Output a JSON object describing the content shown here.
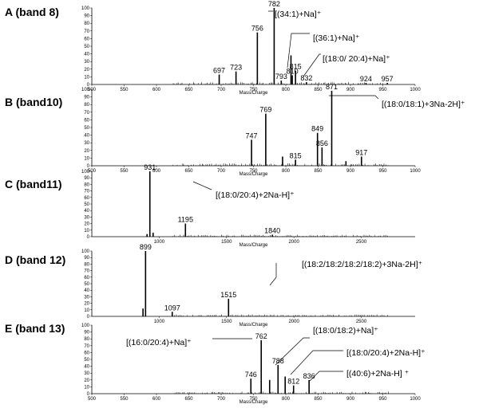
{
  "panels": [
    {
      "label": "A (band 8)"
    },
    {
      "label": "B (band10)"
    },
    {
      "label": "C (band11)"
    },
    {
      "label": "D (band 12)"
    },
    {
      "label": "E (band 13)"
    }
  ],
  "chart_data": [
    {
      "type": "bar",
      "panel": "A (band 8)",
      "xlabel": "Mass/Charge",
      "xlim": [
        500,
        1000
      ],
      "ylim": [
        0,
        100
      ],
      "xticks": [
        500,
        550,
        600,
        650,
        700,
        750,
        800,
        850,
        900,
        950,
        1000
      ],
      "yticks": [
        0,
        10,
        20,
        30,
        40,
        50,
        60,
        70,
        80,
        90,
        100
      ],
      "peaks": [
        {
          "x": 697,
          "y": 13,
          "label": "697"
        },
        {
          "x": 723,
          "y": 17,
          "label": "723"
        },
        {
          "x": 756,
          "y": 68,
          "label": "756"
        },
        {
          "x": 782,
          "y": 100,
          "label": "782"
        },
        {
          "x": 793,
          "y": 5,
          "label": "793"
        },
        {
          "x": 808,
          "y": 38,
          "label": ""
        },
        {
          "x": 810,
          "y": 12,
          "label": "810"
        },
        {
          "x": 815,
          "y": 18,
          "label": "815"
        },
        {
          "x": 832,
          "y": 3,
          "label": "832"
        },
        {
          "x": 924,
          "y": 2,
          "label": "924"
        },
        {
          "x": 957,
          "y": 2,
          "label": "957"
        }
      ],
      "annotations": [
        {
          "text": "[(34:1)+Na]⁺",
          "peak": 782
        },
        {
          "text": "[(36:1)+Na]⁺",
          "peak": 808
        },
        {
          "text": "[(18:0/ 20:4)+Na]⁺",
          "peak": 815
        }
      ]
    },
    {
      "type": "bar",
      "panel": "B (band10)",
      "xlabel": "Mass/Charge",
      "xlim": [
        500,
        1000
      ],
      "ylim": [
        0,
        100
      ],
      "xticks": [
        500,
        550,
        600,
        650,
        700,
        750,
        800,
        850,
        900,
        950,
        1000
      ],
      "yticks": [
        0,
        10,
        20,
        30,
        40,
        50,
        60,
        70,
        80,
        90,
        100
      ],
      "peaks": [
        {
          "x": 747,
          "y": 34,
          "label": "747"
        },
        {
          "x": 769,
          "y": 68,
          "label": "769"
        },
        {
          "x": 795,
          "y": 12,
          "label": ""
        },
        {
          "x": 815,
          "y": 8,
          "label": "815"
        },
        {
          "x": 849,
          "y": 43,
          "label": "849"
        },
        {
          "x": 856,
          "y": 24,
          "label": "856"
        },
        {
          "x": 871,
          "y": 98,
          "label": "871"
        },
        {
          "x": 893,
          "y": 6,
          "label": ""
        },
        {
          "x": 917,
          "y": 12,
          "label": "917"
        }
      ],
      "annotations": [
        {
          "text": "[(18:0/18:1)+3Na-2H]⁺",
          "peak": 871
        }
      ]
    },
    {
      "type": "bar",
      "panel": "C (band11)",
      "xlabel": "Mass/Charge",
      "xlim": [
        500,
        2900
      ],
      "ylim": [
        0,
        100
      ],
      "xticks": [
        1000,
        1500,
        2000,
        2500
      ],
      "yticks": [
        0,
        10,
        20,
        30,
        40,
        50,
        60,
        70,
        80,
        90,
        100
      ],
      "peaks": [
        {
          "x": 910,
          "y": 4,
          "label": ""
        },
        {
          "x": 931,
          "y": 100,
          "label": "931"
        },
        {
          "x": 955,
          "y": 6,
          "label": ""
        },
        {
          "x": 1195,
          "y": 20,
          "label": "1195"
        },
        {
          "x": 1840,
          "y": 3,
          "label": "1840"
        }
      ],
      "annotations": [
        {
          "text": "[(18:0/20:4)+2Na-H]⁺",
          "peak": 931
        }
      ]
    },
    {
      "type": "bar",
      "panel": "D (band 12)",
      "xlabel": "Mass/Charge",
      "xlim": [
        500,
        2900
      ],
      "ylim": [
        0,
        100
      ],
      "xticks": [
        1000,
        1500,
        2000,
        2500
      ],
      "yticks": [
        0,
        10,
        20,
        30,
        40,
        50,
        60,
        70,
        80,
        90,
        100
      ],
      "peaks": [
        {
          "x": 880,
          "y": 12,
          "label": ""
        },
        {
          "x": 899,
          "y": 100,
          "label": "899"
        },
        {
          "x": 1097,
          "y": 7,
          "label": "1097"
        },
        {
          "x": 1515,
          "y": 27,
          "label": "1515"
        }
      ],
      "annotations": [
        {
          "text": "[(18:2/18:2/18:2/18:2)+3Na-2H]⁺",
          "peak": 1515
        }
      ]
    },
    {
      "type": "bar",
      "panel": "E (band 13)",
      "xlabel": "Mass/Charge",
      "xlim": [
        500,
        1000
      ],
      "ylim": [
        0,
        100
      ],
      "xticks": [
        500,
        550,
        600,
        650,
        700,
        750,
        800,
        850,
        900,
        950,
        1000
      ],
      "yticks": [
        0,
        10,
        20,
        30,
        40,
        50,
        60,
        70,
        80,
        90,
        100
      ],
      "peaks": [
        {
          "x": 746,
          "y": 22,
          "label": "746"
        },
        {
          "x": 762,
          "y": 78,
          "label": "762"
        },
        {
          "x": 775,
          "y": 20,
          "label": ""
        },
        {
          "x": 788,
          "y": 42,
          "label": "788"
        },
        {
          "x": 799,
          "y": 25,
          "label": ""
        },
        {
          "x": 812,
          "y": 12,
          "label": "812"
        },
        {
          "x": 836,
          "y": 20,
          "label": "836"
        }
      ],
      "annotations": [
        {
          "text": "[(16:0/20:4)+Na]⁺",
          "peak": 762
        },
        {
          "text": "[(18:0/18:2)+Na]⁺",
          "peak": 788
        },
        {
          "text": "[(18:0/20:4)+2Na-H]⁺",
          "peak": 812
        },
        {
          "text": "[(40:6)+2Na-H]  ⁺",
          "peak": 836
        }
      ]
    }
  ]
}
